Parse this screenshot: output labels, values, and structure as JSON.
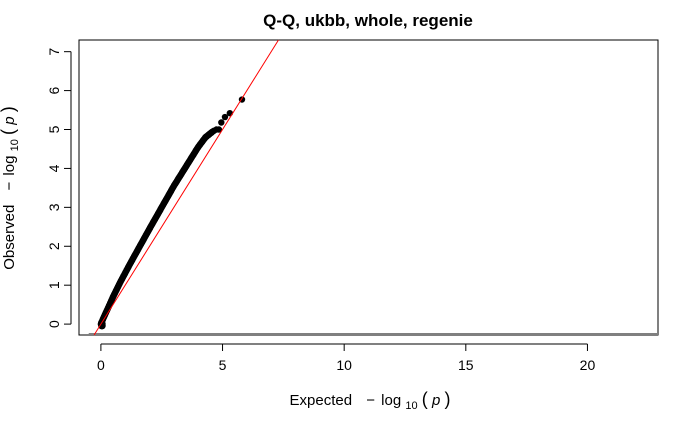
{
  "chart_data": {
    "type": "scatter",
    "title": "Q-Q, ukbb, whole, regenie",
    "xlabel": {
      "prefix": "Expected",
      "minus": "−",
      "log": "log",
      "base": "10",
      "open": "(",
      "var": "p",
      "close": ")"
    },
    "ylabel": {
      "prefix": "Observed",
      "minus": "−",
      "log": "log",
      "base": "10",
      "open": "(",
      "var": "p",
      "close": ")"
    },
    "xlim": [
      -0.9,
      22.9
    ],
    "ylim": [
      -0.28,
      7.3
    ],
    "xticks": [
      0,
      5,
      10,
      15,
      20
    ],
    "yticks": [
      0,
      1,
      2,
      3,
      4,
      5,
      6,
      7
    ],
    "reference_line": {
      "intercept": 0,
      "slope": 1,
      "color": "#ff0000"
    },
    "baseline": {
      "y": -0.28,
      "x": [
        -0.5,
        22.9
      ],
      "color": "#808080"
    },
    "point_color": "#000000",
    "trend": {
      "x": [
        0,
        0.1,
        0.3,
        0.5,
        0.8,
        1.2,
        1.6,
        2.0,
        2.5,
        3.0,
        3.5,
        4.0,
        4.3,
        4.6
      ],
      "y": [
        0.0,
        0.15,
        0.42,
        0.7,
        1.08,
        1.55,
        2.0,
        2.45,
        3.0,
        3.55,
        4.05,
        4.55,
        4.8,
        4.95
      ]
    },
    "top_points": [
      {
        "x": 4.65,
        "y": 4.97
      },
      {
        "x": 4.75,
        "y": 5.0
      },
      {
        "x": 4.85,
        "y": 5.0
      },
      {
        "x": 4.95,
        "y": 5.18
      },
      {
        "x": 5.1,
        "y": 5.32
      },
      {
        "x": 5.3,
        "y": 5.42
      },
      {
        "x": 5.8,
        "y": 5.77
      }
    ]
  }
}
